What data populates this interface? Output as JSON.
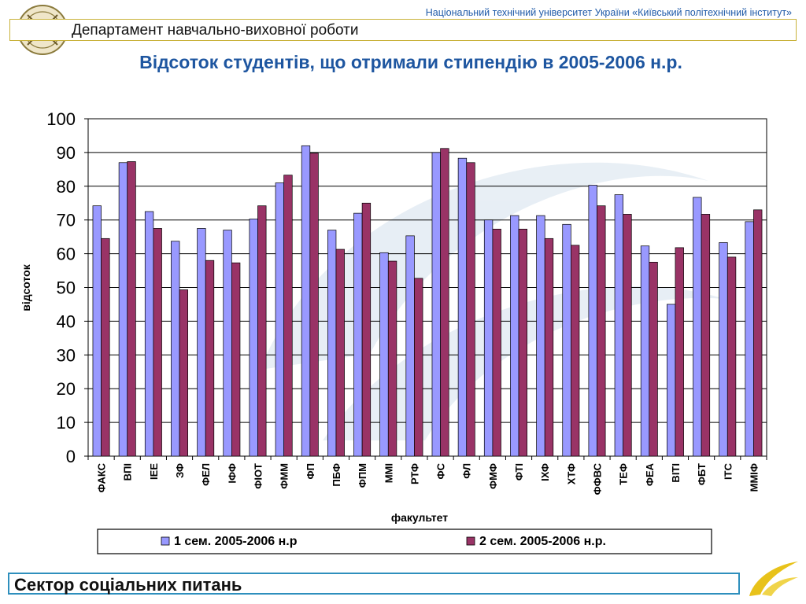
{
  "header": {
    "university": "Національний технічний університет України «Київський політехнічний інститут»",
    "department": "Департамент навчально-виховної роботи"
  },
  "footer": {
    "sector": "Сектор соціальних питань"
  },
  "colors": {
    "series1": "#9999ff",
    "series2": "#993366",
    "title": "#1e56a0",
    "accent": "#2e8fbd"
  },
  "chart_data": {
    "type": "bar",
    "title": "Відсоток студентів, що отримали стипендію в 2005-2006 н.р.",
    "xlabel": "факультет",
    "ylabel": "відсоток",
    "ylim": [
      0,
      100
    ],
    "yticks": [
      0,
      10,
      20,
      30,
      40,
      50,
      60,
      70,
      80,
      90,
      100
    ],
    "grid": true,
    "legend_position": "bottom",
    "categories": [
      "ФАКС",
      "ВПІ",
      "ІЕЕ",
      "ЗФ",
      "ФЕЛ",
      "ІФФ",
      "ФІОТ",
      "ФММ",
      "ФП",
      "ПБФ",
      "ФПМ",
      "ММІ",
      "РТФ",
      "ФС",
      "ФЛ",
      "ФМФ",
      "ФТІ",
      "ІХФ",
      "ХТФ",
      "ФФВС",
      "ТЕФ",
      "ФЕА",
      "ВІТІ",
      "ФБТ",
      "ІТС",
      "ММІФ"
    ],
    "series": [
      {
        "name": "1 сем. 2005-2006 н.р",
        "values": [
          74.2,
          87,
          72.5,
          63.7,
          67.5,
          67,
          70.3,
          81,
          92,
          67,
          72,
          60.3,
          65.3,
          90,
          88.3,
          70,
          71.3,
          71.3,
          68.7,
          80.3,
          77.5,
          62.3,
          45,
          76.7,
          63.3,
          69.5
        ]
      },
      {
        "name": "2 сем. 2005-2006 н.р.",
        "values": [
          64.5,
          87.3,
          67.5,
          49.3,
          58,
          57.3,
          74.2,
          83.3,
          89.8,
          61.3,
          75,
          57.8,
          52.7,
          91.2,
          87,
          67.3,
          67.3,
          64.5,
          62.5,
          74.2,
          71.7,
          57.5,
          61.8,
          71.7,
          59,
          73
        ]
      }
    ]
  }
}
